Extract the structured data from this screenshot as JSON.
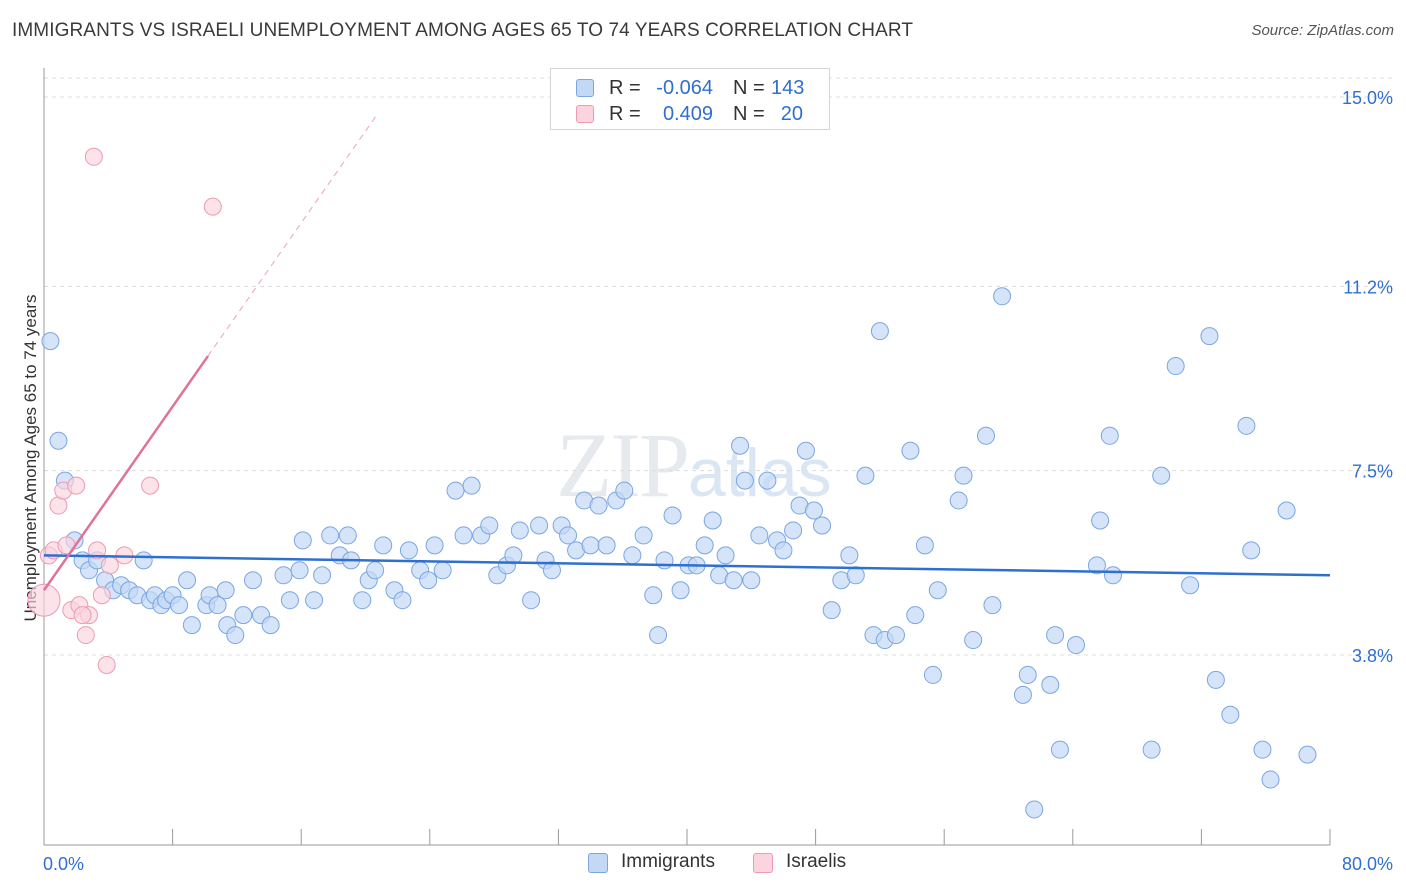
{
  "title": "IMMIGRANTS VS ISRAELI UNEMPLOYMENT AMONG AGES 65 TO 74 YEARS CORRELATION CHART",
  "source": "Source: ZipAtlas.com",
  "watermark": {
    "zip": "ZIP",
    "atlas": "atlas"
  },
  "colors": {
    "immigrants_fill": "#c3d8f5",
    "immigrants_stroke": "#7aa6e3",
    "immigrants_line": "#2f6fd0",
    "israelis_fill": "#fbd4df",
    "israelis_stroke": "#ee9ab2",
    "israelis_line": "#e0739a",
    "axis_label_blue": "#2f6fd0",
    "grid": "#dcdcdc"
  },
  "legend": {
    "rows": [
      {
        "r_label": "R =",
        "r_value": "-0.064",
        "n_label": "N =",
        "n_value": "143"
      },
      {
        "r_label": "R =",
        "r_value": "0.409",
        "n_label": "N =",
        "n_value": "20"
      }
    ],
    "bottom": [
      "Immigrants",
      "Israelis"
    ]
  },
  "chart_data": {
    "type": "scatter",
    "title": "IMMIGRANTS VS ISRAELI UNEMPLOYMENT AMONG AGES 65 TO 74 YEARS CORRELATION CHART",
    "xlabel": "",
    "ylabel": "Unemployment Among Ages 65 to 74 years",
    "xlim": [
      0,
      80
    ],
    "ylim": [
      0,
      15.5
    ],
    "x_tick_labels": [
      "0.0%",
      "80.0%"
    ],
    "y_ticks": [
      3.8,
      7.5,
      11.2,
      15.0
    ],
    "y_tick_labels": [
      "3.8%",
      "7.5%",
      "11.2%",
      "15.0%"
    ],
    "grid": true,
    "legend_position": "top-center",
    "series": [
      {
        "name": "Immigrants",
        "r": -0.064,
        "n": 143,
        "trend": {
          "x": [
            0,
            80
          ],
          "y": [
            5.8,
            5.4
          ]
        },
        "points": [
          [
            0.4,
            10.1
          ],
          [
            0.9,
            8.1
          ],
          [
            1.3,
            7.3
          ],
          [
            1.9,
            6.1
          ],
          [
            2.4,
            5.7
          ],
          [
            2.8,
            5.5
          ],
          [
            3.3,
            5.7
          ],
          [
            3.8,
            5.3
          ],
          [
            4.3,
            5.1
          ],
          [
            4.8,
            5.2
          ],
          [
            5.3,
            5.1
          ],
          [
            5.8,
            5.0
          ],
          [
            6.2,
            5.7
          ],
          [
            6.6,
            4.9
          ],
          [
            6.9,
            5.0
          ],
          [
            7.3,
            4.8
          ],
          [
            7.6,
            4.9
          ],
          [
            8.0,
            5.0
          ],
          [
            8.4,
            4.8
          ],
          [
            8.9,
            5.3
          ],
          [
            9.2,
            4.4
          ],
          [
            10.1,
            4.8
          ],
          [
            10.3,
            5.0
          ],
          [
            10.8,
            4.8
          ],
          [
            11.3,
            5.1
          ],
          [
            11.4,
            4.4
          ],
          [
            11.9,
            4.2
          ],
          [
            12.4,
            4.6
          ],
          [
            13.0,
            5.3
          ],
          [
            13.5,
            4.6
          ],
          [
            14.1,
            4.4
          ],
          [
            14.9,
            5.4
          ],
          [
            15.3,
            4.9
          ],
          [
            15.9,
            5.5
          ],
          [
            16.1,
            6.1
          ],
          [
            16.8,
            4.9
          ],
          [
            17.3,
            5.4
          ],
          [
            17.8,
            6.2
          ],
          [
            18.4,
            5.8
          ],
          [
            18.9,
            6.2
          ],
          [
            19.1,
            5.7
          ],
          [
            19.8,
            4.9
          ],
          [
            20.2,
            5.3
          ],
          [
            20.6,
            5.5
          ],
          [
            21.1,
            6.0
          ],
          [
            21.8,
            5.1
          ],
          [
            22.3,
            4.9
          ],
          [
            22.7,
            5.9
          ],
          [
            23.4,
            5.5
          ],
          [
            23.9,
            5.3
          ],
          [
            24.3,
            6.0
          ],
          [
            24.8,
            5.5
          ],
          [
            25.6,
            7.1
          ],
          [
            26.1,
            6.2
          ],
          [
            26.6,
            7.2
          ],
          [
            27.2,
            6.2
          ],
          [
            27.7,
            6.4
          ],
          [
            28.2,
            5.4
          ],
          [
            28.8,
            5.6
          ],
          [
            29.2,
            5.8
          ],
          [
            29.6,
            6.3
          ],
          [
            30.3,
            4.9
          ],
          [
            30.8,
            6.4
          ],
          [
            31.2,
            5.7
          ],
          [
            31.6,
            5.5
          ],
          [
            32.2,
            6.4
          ],
          [
            32.6,
            6.2
          ],
          [
            33.1,
            5.9
          ],
          [
            33.6,
            6.9
          ],
          [
            34.0,
            6.0
          ],
          [
            34.5,
            6.8
          ],
          [
            35.0,
            6.0
          ],
          [
            35.6,
            6.9
          ],
          [
            36.1,
            7.1
          ],
          [
            36.6,
            5.8
          ],
          [
            37.3,
            6.2
          ],
          [
            37.9,
            5.0
          ],
          [
            38.2,
            4.2
          ],
          [
            38.6,
            5.7
          ],
          [
            39.1,
            6.6
          ],
          [
            39.6,
            5.1
          ],
          [
            40.1,
            5.6
          ],
          [
            40.6,
            5.6
          ],
          [
            41.1,
            6.0
          ],
          [
            41.6,
            6.5
          ],
          [
            42.0,
            5.4
          ],
          [
            42.4,
            5.8
          ],
          [
            42.9,
            5.3
          ],
          [
            43.3,
            8.0
          ],
          [
            43.6,
            7.3
          ],
          [
            44.0,
            5.3
          ],
          [
            44.5,
            6.2
          ],
          [
            45.0,
            7.3
          ],
          [
            45.6,
            6.1
          ],
          [
            46.0,
            5.9
          ],
          [
            46.6,
            6.3
          ],
          [
            47.0,
            6.8
          ],
          [
            47.4,
            7.9
          ],
          [
            47.9,
            6.7
          ],
          [
            48.4,
            6.4
          ],
          [
            49.0,
            4.7
          ],
          [
            49.6,
            5.3
          ],
          [
            50.1,
            5.8
          ],
          [
            50.5,
            5.4
          ],
          [
            51.1,
            7.4
          ],
          [
            51.6,
            4.2
          ],
          [
            52.0,
            10.3
          ],
          [
            52.3,
            4.1
          ],
          [
            53.0,
            4.2
          ],
          [
            53.9,
            7.9
          ],
          [
            54.2,
            4.6
          ],
          [
            54.8,
            6.0
          ],
          [
            55.3,
            3.4
          ],
          [
            55.6,
            5.1
          ],
          [
            56.9,
            6.9
          ],
          [
            57.2,
            7.4
          ],
          [
            57.8,
            4.1
          ],
          [
            58.6,
            8.2
          ],
          [
            59.0,
            4.8
          ],
          [
            59.6,
            11.0
          ],
          [
            60.9,
            3.0
          ],
          [
            61.2,
            3.4
          ],
          [
            61.6,
            0.7
          ],
          [
            62.6,
            3.2
          ],
          [
            62.9,
            4.2
          ],
          [
            63.2,
            1.9
          ],
          [
            64.2,
            4.0
          ],
          [
            65.5,
            5.6
          ],
          [
            65.7,
            6.5
          ],
          [
            66.3,
            8.2
          ],
          [
            66.5,
            5.4
          ],
          [
            68.9,
            1.9
          ],
          [
            69.5,
            7.4
          ],
          [
            70.4,
            9.6
          ],
          [
            71.3,
            5.2
          ],
          [
            72.5,
            10.2
          ],
          [
            72.9,
            3.3
          ],
          [
            73.8,
            2.6
          ],
          [
            74.8,
            8.4
          ],
          [
            75.1,
            5.9
          ],
          [
            75.8,
            1.9
          ],
          [
            76.3,
            1.3
          ],
          [
            77.3,
            6.7
          ],
          [
            78.6,
            1.8
          ]
        ]
      },
      {
        "name": "Israelis",
        "r": 0.409,
        "n": 20,
        "trend": {
          "x": [
            0,
            10.2
          ],
          "y": [
            5.1,
            9.8
          ]
        },
        "points": [
          [
            0.0,
            4.9
          ],
          [
            0.3,
            5.8
          ],
          [
            0.6,
            5.9
          ],
          [
            0.9,
            6.8
          ],
          [
            1.2,
            7.1
          ],
          [
            1.4,
            6.0
          ],
          [
            1.7,
            4.7
          ],
          [
            2.0,
            7.2
          ],
          [
            2.2,
            4.8
          ],
          [
            2.6,
            4.2
          ],
          [
            2.8,
            4.6
          ],
          [
            3.1,
            13.8
          ],
          [
            3.3,
            5.9
          ],
          [
            3.6,
            5.0
          ],
          [
            3.9,
            3.6
          ],
          [
            4.1,
            5.6
          ],
          [
            5.0,
            5.8
          ],
          [
            6.6,
            7.2
          ],
          [
            10.5,
            12.8
          ],
          [
            2.4,
            4.6
          ]
        ]
      }
    ]
  }
}
